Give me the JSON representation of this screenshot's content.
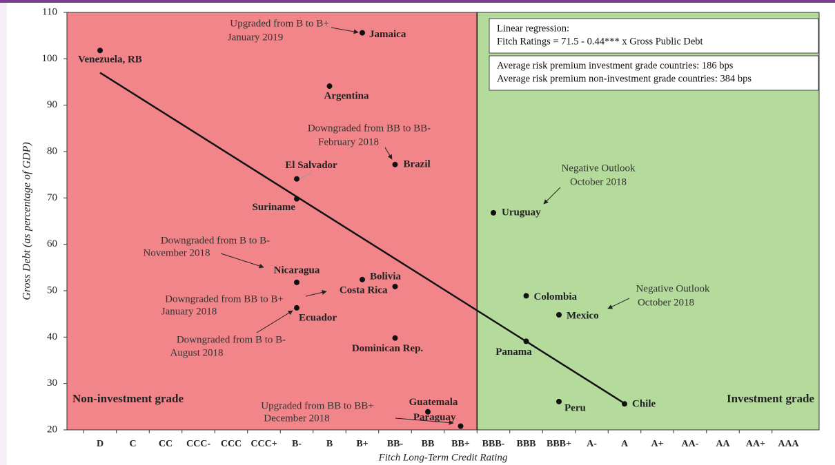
{
  "chart_data": {
    "type": "scatter",
    "y_label": "Gross Debt (as percentage of GDP)",
    "x_label": "Fitch Long-Term Credit Rating",
    "categories": [
      "D",
      "C",
      "CC",
      "CCC-",
      "CCC",
      "CCC+",
      "B-",
      "B",
      "B+",
      "BB-",
      "BB",
      "BB+",
      "BBB-",
      "BBB",
      "BBB+",
      "A-",
      "A",
      "A+",
      "AA-",
      "AA",
      "AA+",
      "AAA"
    ],
    "ylim": [
      20,
      110
    ],
    "yticks": [
      20,
      30,
      40,
      50,
      60,
      70,
      80,
      90,
      100,
      110
    ],
    "color": "#111111",
    "labels": [
      "Venezuela, RB",
      "Jamaica",
      "Argentina",
      "Brazil",
      "El Salvador",
      "Suriname",
      "Uruguay",
      "Nicaragua",
      "Bolivia",
      "Costa Rica",
      "Colombia",
      "Mexico",
      "Ecuador",
      "Dominican Rep.",
      "Panama",
      "Chile",
      "Peru",
      "Guatemala",
      "Paraguay"
    ],
    "x": [
      "D",
      "B+",
      "B",
      "BB-",
      "B-",
      "B-",
      "BBB-",
      "B-",
      "B+",
      "BB-",
      "BBB",
      "BBB+",
      "B-",
      "BB-",
      "BBB",
      "A",
      "BBB+",
      "BB",
      "BB+"
    ],
    "values": [
      101.8,
      105.6,
      94.1,
      77.2,
      74.1,
      69.8,
      66.8,
      51.8,
      52.4,
      50.9,
      48.9,
      44.8,
      46.3,
      39.8,
      39.1,
      25.6,
      26.1,
      23.9,
      20.8
    ],
    "trendline": {
      "x": [
        "D",
        "A"
      ],
      "values": [
        97,
        25.7
      ],
      "color": "#111111"
    },
    "regions": [
      {
        "label": "Non-investment grade",
        "color": "#f1858a"
      },
      {
        "label": "Investment grade",
        "color": "#b4da9c"
      }
    ],
    "divider_after": "BB+",
    "boxes": [
      [
        "Linear regression:",
        "Fitch Ratings = 71.5 - 0.44*** x Gross Public Debt"
      ],
      [
        "Average risk premium investment grade countries: 186 bps",
        "Average risk premium non-investment grade countries: 384 bps"
      ]
    ],
    "annotations": [
      [
        "Upgraded from B to B+",
        "January 2019"
      ],
      [
        "Downgraded from BB to BB-",
        "February 2018"
      ],
      [
        "Negative Outlook",
        "October 2018"
      ],
      [
        "Downgraded from B to B-",
        "November 2018"
      ],
      [
        "Downgraded from BB to B+",
        "January 2018"
      ],
      [
        "Negative Outlook",
        "October 2018"
      ],
      [
        "Downgraded from B to B-",
        "August 2018"
      ],
      [
        "Upgraded from BB to BB+",
        "December 2018"
      ]
    ]
  }
}
